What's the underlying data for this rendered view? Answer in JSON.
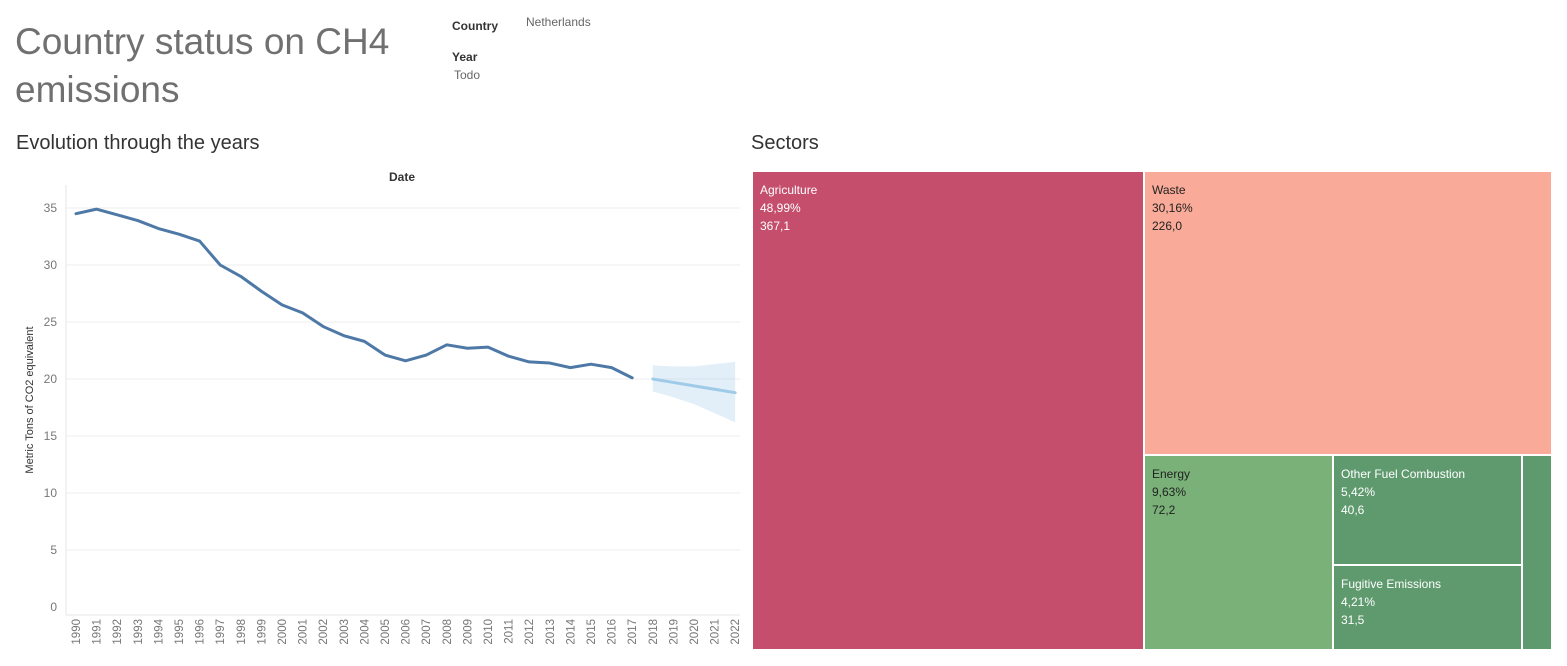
{
  "dashboard": {
    "title": "Country status on CH4 emissions",
    "filters": {
      "country_label": "Country",
      "country_value": "Netherlands",
      "year_label": "Year",
      "year_value": "Todo"
    }
  },
  "colors": {
    "line": "#4e79a7",
    "forecast": "#a0cbe8",
    "agriculture": "#c44e6c",
    "waste": "#f9aa98",
    "energy": "#7ab179",
    "other_fuel": "#5f9a6e"
  },
  "chart_data": [
    {
      "type": "line",
      "title": "Evolution through the years",
      "xlabel": "Date",
      "ylabel": "Metric Tons of  CO2 equivalent",
      "ylim": [
        0,
        37
      ],
      "yticks": [
        0,
        5,
        10,
        15,
        20,
        25,
        30,
        35
      ],
      "grid": true,
      "x": [
        "1990",
        "1991",
        "1992",
        "1993",
        "1994",
        "1995",
        "1996",
        "1997",
        "1998",
        "1999",
        "2000",
        "2001",
        "2002",
        "2003",
        "2004",
        "2005",
        "2006",
        "2007",
        "2008",
        "2009",
        "2010",
        "2011",
        "2012",
        "2013",
        "2014",
        "2015",
        "2016",
        "2017",
        "2018",
        "2019",
        "2020",
        "2021",
        "2022"
      ],
      "series": [
        {
          "values": [
            34.5,
            34.9,
            34.4,
            33.9,
            33.2,
            32.7,
            32.1,
            30.0,
            29.0,
            27.7,
            26.5,
            25.8,
            24.6,
            23.8,
            23.3,
            22.1,
            21.6,
            22.1,
            23.0,
            22.7,
            22.8,
            22.0,
            21.5,
            21.4,
            21.0,
            21.3,
            21.0,
            20.1,
            null,
            null,
            null,
            null,
            null
          ]
        },
        {
          "values": [
            null,
            null,
            null,
            null,
            null,
            null,
            null,
            null,
            null,
            null,
            null,
            null,
            null,
            null,
            null,
            null,
            null,
            null,
            null,
            null,
            null,
            null,
            null,
            null,
            null,
            null,
            null,
            null,
            20.0,
            19.7,
            19.4,
            19.1,
            18.8
          ],
          "lower": [
            null,
            null,
            null,
            null,
            null,
            null,
            null,
            null,
            null,
            null,
            null,
            null,
            null,
            null,
            null,
            null,
            null,
            null,
            null,
            null,
            null,
            null,
            null,
            null,
            null,
            null,
            null,
            null,
            18.9,
            18.4,
            17.8,
            17.0,
            16.2
          ],
          "upper": [
            null,
            null,
            null,
            null,
            null,
            null,
            null,
            null,
            null,
            null,
            null,
            null,
            null,
            null,
            null,
            null,
            null,
            null,
            null,
            null,
            null,
            null,
            null,
            null,
            null,
            null,
            null,
            null,
            21.2,
            21.1,
            21.1,
            21.3,
            21.5
          ]
        }
      ]
    },
    {
      "type": "treemap",
      "title": "Sectors",
      "items": [
        {
          "name": "Agriculture",
          "percent": "48,99%",
          "value": "367,1"
        },
        {
          "name": "Waste",
          "percent": "30,16%",
          "value": "226,0"
        },
        {
          "name": "Energy",
          "percent": "9,63%",
          "value": "72,2"
        },
        {
          "name": "Other Fuel Combustion",
          "percent": "5,42%",
          "value": "40,6"
        },
        {
          "name": "Fugitive Emissions",
          "percent": "4,21%",
          "value": "31,5"
        }
      ]
    }
  ]
}
